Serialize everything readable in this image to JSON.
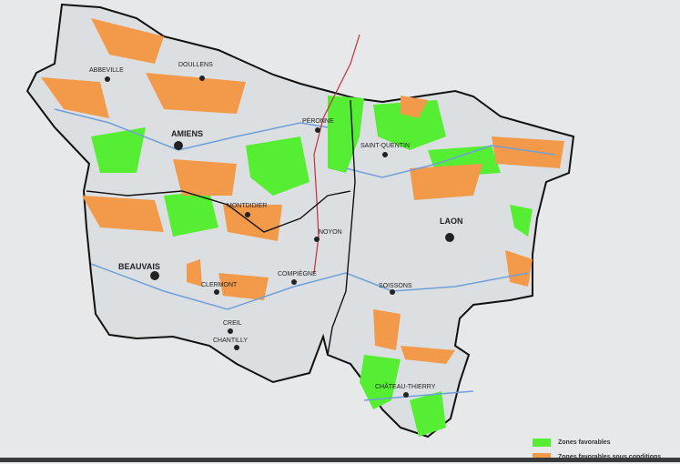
{
  "colors": {
    "favorable": "#55ee33",
    "conditional": "#f39a4a",
    "region_fill": "#dcdfe2",
    "border": "#111111",
    "river": "#6f9fd8",
    "road": "#c0303a"
  },
  "cities": [
    {
      "name": "ABBEVILLE",
      "major": false
    },
    {
      "name": "DOULLENS",
      "major": false
    },
    {
      "name": "AMIENS",
      "major": true
    },
    {
      "name": "PÉRONNE",
      "major": false
    },
    {
      "name": "SAINT-QUENTIN",
      "major": false
    },
    {
      "name": "MONTDIDIER",
      "major": false
    },
    {
      "name": "NOYON",
      "major": false
    },
    {
      "name": "LAON",
      "major": true
    },
    {
      "name": "BEAUVAIS",
      "major": true
    },
    {
      "name": "CLERMONT",
      "major": false
    },
    {
      "name": "COMPIÈGNE",
      "major": false
    },
    {
      "name": "SOISSONS",
      "major": false
    },
    {
      "name": "CREIL",
      "major": false
    },
    {
      "name": "CHANTILLY",
      "major": false
    },
    {
      "name": "CHÂTEAU-THIERRY",
      "major": false
    }
  ],
  "legend": {
    "items": [
      {
        "label": "Zones favorables",
        "color_key": "favorable"
      },
      {
        "label": "Zones favorables sous conditions",
        "color_key": "conditional"
      }
    ]
  }
}
